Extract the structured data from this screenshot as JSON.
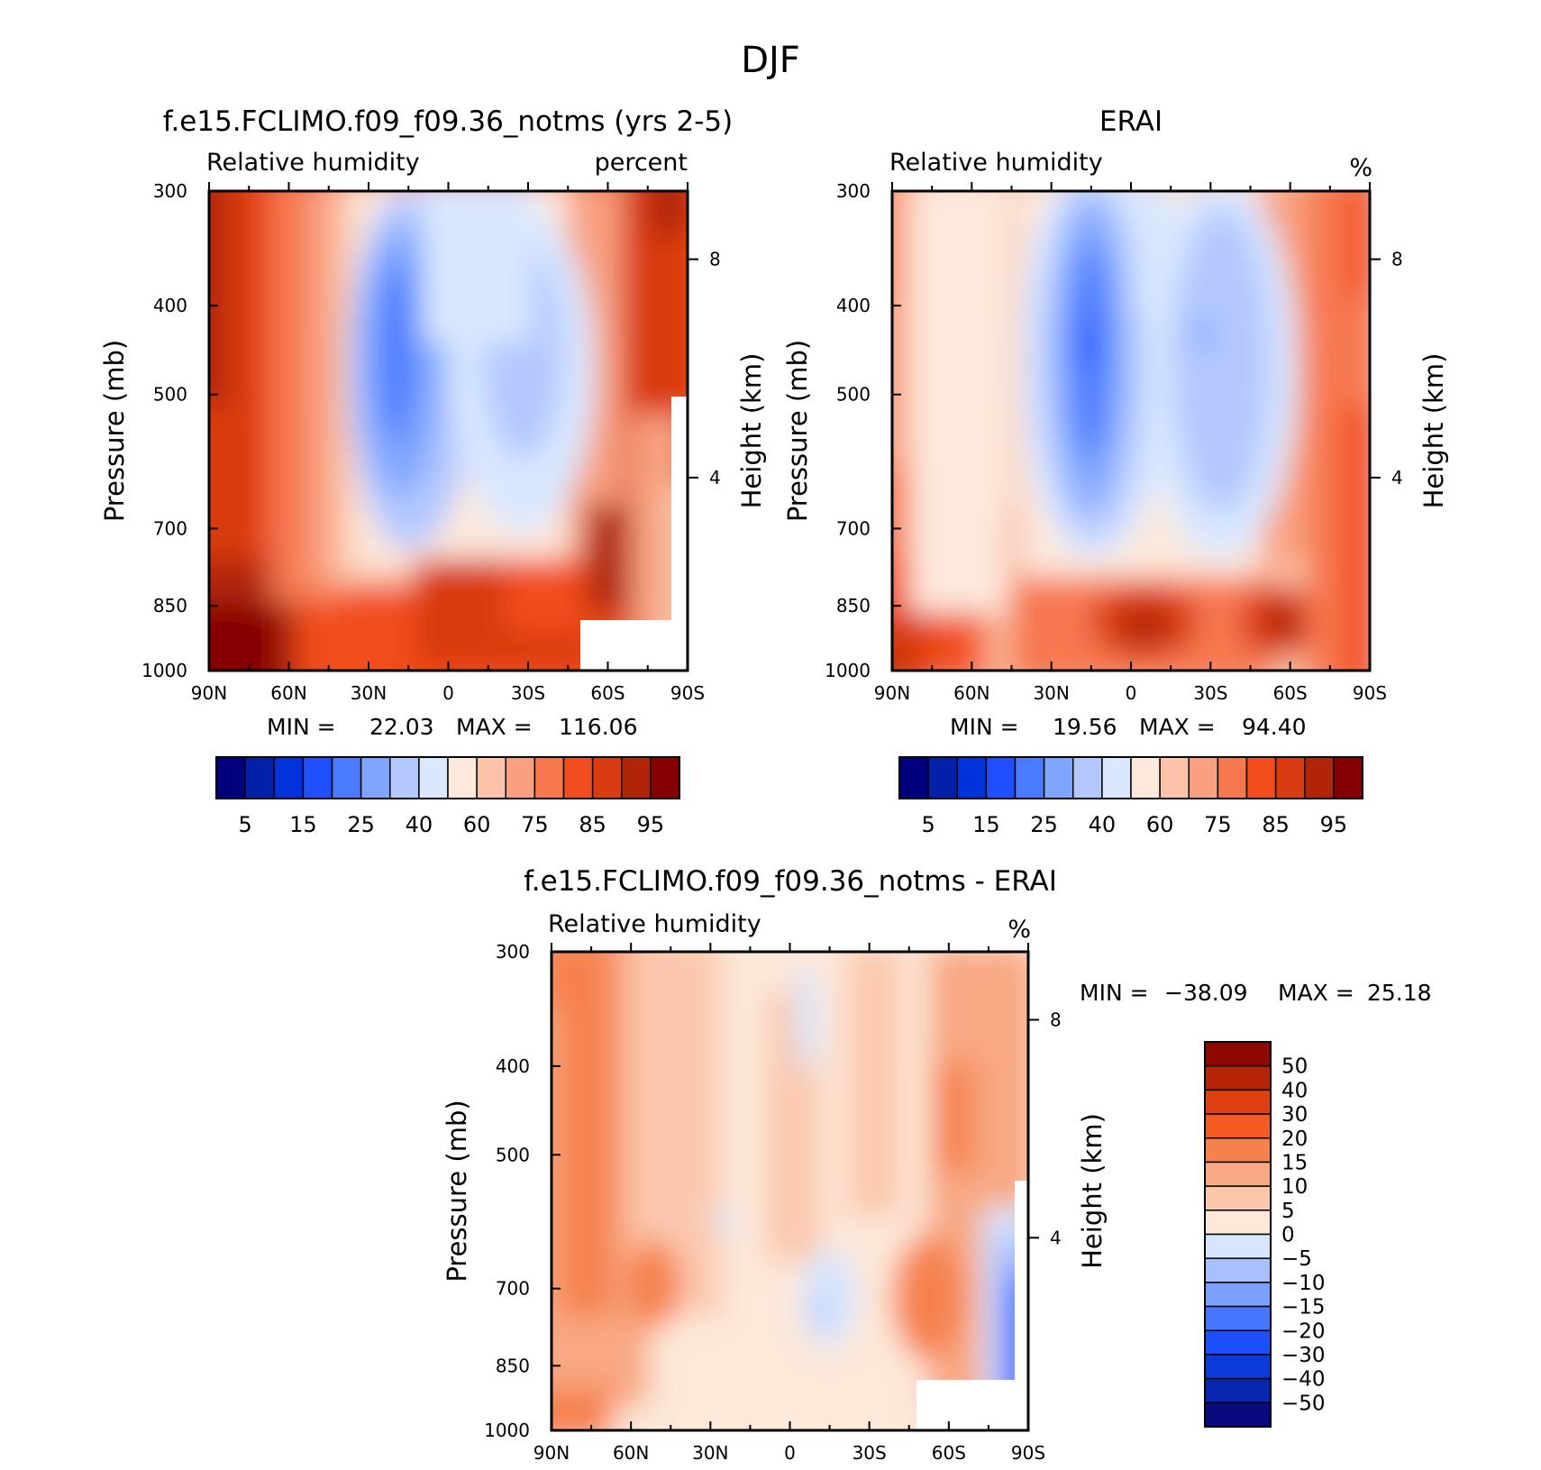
{
  "figure": {
    "title": "DJF"
  },
  "colors": {
    "abs_levels": [
      "#00007f",
      "#0021a8",
      "#0033d9",
      "#1f4fff",
      "#4a7bff",
      "#7fa6ff",
      "#b3c8ff",
      "#d9e8ff",
      "#fde9dc",
      "#fbc3a8",
      "#f8a07f",
      "#f6784f",
      "#f24d1f",
      "#d93a10",
      "#b02508",
      "#860000"
    ],
    "diff_levels": [
      "#0a0a80",
      "#0626b0",
      "#0a3ad8",
      "#1c4ffc",
      "#4678ff",
      "#7aa0ff",
      "#a8c0ff",
      "#d6e6ff",
      "#fde8d9",
      "#fbc8ad",
      "#f8a882",
      "#f6814d",
      "#f45a22",
      "#e0400f",
      "#b72405",
      "#8e0a00"
    ]
  },
  "chart_data": [
    {
      "type": "heatmap",
      "title": "f.e15.FCLIMO.f09_f09.36_notms (yrs 2-5)",
      "subtitle_left": "Relative humidity",
      "subtitle_right": "percent",
      "xlabel": "",
      "ylabel": "Pressure (mb)",
      "ylabel_right": "Height (km)",
      "x_ticks": [
        "90N",
        "60N",
        "30N",
        "0",
        "30S",
        "60S",
        "90S"
      ],
      "y_ticks": [
        "300",
        "400",
        "500",
        "700",
        "850",
        "1000"
      ],
      "y_ticks_right": [
        "8",
        "4"
      ],
      "min_label": "MIN =",
      "min_value": "22.03",
      "max_label": "MAX =",
      "max_value": "116.06",
      "colorbar_labels": [
        "5",
        "15",
        "25",
        "40",
        "60",
        "75",
        "85",
        "95"
      ],
      "levels": [
        5,
        10,
        15,
        20,
        25,
        30,
        40,
        50,
        60,
        70,
        75,
        80,
        85,
        90,
        95
      ]
    },
    {
      "type": "heatmap",
      "title": "ERAI",
      "subtitle_left": "Relative humidity",
      "subtitle_right": "%",
      "xlabel": "",
      "ylabel": "Pressure (mb)",
      "ylabel_right": "Height (km)",
      "x_ticks": [
        "90N",
        "60N",
        "30N",
        "0",
        "30S",
        "60S",
        "90S"
      ],
      "y_ticks": [
        "300",
        "400",
        "500",
        "700",
        "850",
        "1000"
      ],
      "y_ticks_right": [
        "8",
        "4"
      ],
      "min_label": "MIN =",
      "min_value": "19.56",
      "max_label": "MAX =",
      "max_value": "94.40",
      "colorbar_labels": [
        "5",
        "15",
        "25",
        "40",
        "60",
        "75",
        "85",
        "95"
      ],
      "levels": [
        5,
        10,
        15,
        20,
        25,
        30,
        40,
        50,
        60,
        70,
        75,
        80,
        85,
        90,
        95
      ]
    },
    {
      "type": "heatmap",
      "title": "f.e15.FCLIMO.f09_f09.36_notms - ERAI",
      "subtitle_left": "Relative humidity",
      "subtitle_right": "%",
      "xlabel": "",
      "ylabel": "Pressure (mb)",
      "ylabel_right": "Height (km)",
      "x_ticks": [
        "90N",
        "60N",
        "30N",
        "0",
        "30S",
        "60S",
        "90S"
      ],
      "y_ticks": [
        "300",
        "400",
        "500",
        "700",
        "850",
        "1000"
      ],
      "y_ticks_right": [
        "8",
        "4"
      ],
      "min_label": "MIN =",
      "min_value": "−38.09",
      "max_label": "MAX =",
      "max_value": "25.18",
      "colorbar_labels": [
        "50",
        "40",
        "30",
        "20",
        "15",
        "10",
        "5",
        "0",
        "−5",
        "−10",
        "−15",
        "−20",
        "−30",
        "−40",
        "−50"
      ],
      "levels": [
        -50,
        -40,
        -30,
        -20,
        -15,
        -10,
        -5,
        0,
        5,
        10,
        15,
        20,
        30,
        40,
        50
      ]
    }
  ]
}
